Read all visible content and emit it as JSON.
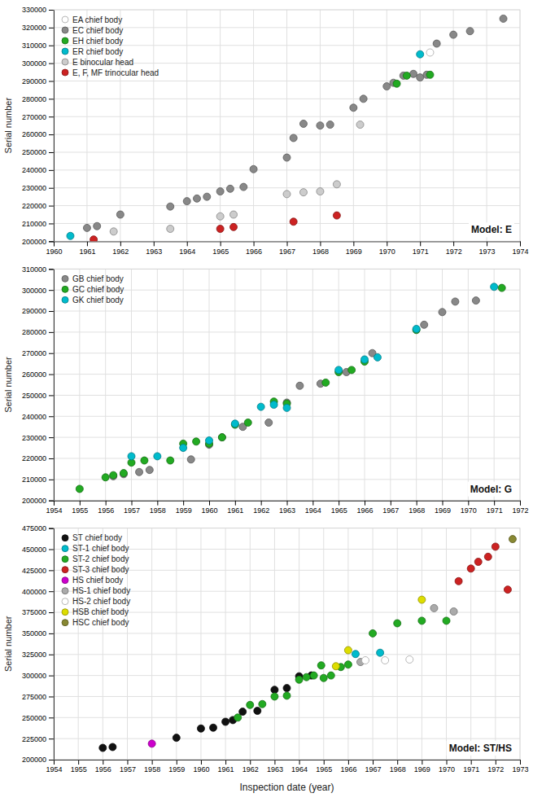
{
  "chart_data": [
    {
      "type": "scatter",
      "title": "Model: E",
      "ylabel": "Serial number",
      "xlim": [
        1960,
        1974
      ],
      "ylim": [
        200000,
        330000
      ],
      "xticks": [
        1960,
        1961,
        1962,
        1963,
        1964,
        1965,
        1966,
        1967,
        1968,
        1969,
        1970,
        1971,
        1972,
        1973,
        1974
      ],
      "yticks": [
        200000,
        210000,
        220000,
        230000,
        240000,
        250000,
        260000,
        270000,
        280000,
        290000,
        300000,
        310000,
        320000,
        330000
      ],
      "grid": true,
      "legend": "upper left",
      "series": [
        {
          "name": "EA chief body",
          "color": "white",
          "x": [
            1971.3
          ],
          "values": [
            306000
          ]
        },
        {
          "name": "EC chief body",
          "color": "#888888",
          "x": [
            1961.0,
            1961.3,
            1962.0,
            1963.5,
            1964.0,
            1964.3,
            1964.6,
            1965.0,
            1965.3,
            1965.7,
            1966.0,
            1967.0,
            1967.2,
            1967.5,
            1968.0,
            1968.3,
            1969.0,
            1969.3,
            1970.0,
            1970.2,
            1970.5,
            1970.8,
            1971.0,
            1971.2,
            1971.5,
            1972.0,
            1972.5,
            1973.5
          ],
          "values": [
            207500,
            208500,
            215000,
            219500,
            222500,
            224000,
            225000,
            228000,
            229500,
            230500,
            240500,
            247000,
            258000,
            266000,
            265000,
            265500,
            275000,
            280000,
            287000,
            289000,
            293000,
            294000,
            292000,
            293500,
            311000,
            316000,
            318000,
            325000
          ]
        },
        {
          "name": "EH chief body",
          "color": "#22aa22",
          "x": [
            1970.3,
            1970.6,
            1971.3
          ],
          "values": [
            288500,
            293000,
            293500
          ]
        },
        {
          "name": "ER chief body",
          "color": "#00bbcc",
          "x": [
            1960.5,
            1971.0
          ],
          "values": [
            203000,
            305000
          ]
        },
        {
          "name": "E binocular head",
          "color": "#cccccc",
          "x": [
            1961.8,
            1963.5,
            1965.0,
            1965.4,
            1967.0,
            1967.5,
            1968.0,
            1968.5,
            1969.2
          ],
          "values": [
            205500,
            207000,
            214000,
            215000,
            226500,
            227500,
            228000,
            232000,
            265500
          ]
        },
        {
          "name": "E, F, MF trinocular head",
          "color": "#cc2222",
          "x": [
            1961.2,
            1965.0,
            1965.4,
            1967.2,
            1968.5
          ],
          "values": [
            201000,
            207000,
            208000,
            211000,
            214500
          ]
        }
      ]
    },
    {
      "type": "scatter",
      "title": "Model: G",
      "ylabel": "Serial number",
      "xlim": [
        1954,
        1972
      ],
      "ylim": [
        200000,
        310000
      ],
      "xticks": [
        1954,
        1955,
        1956,
        1957,
        1958,
        1959,
        1960,
        1961,
        1962,
        1963,
        1964,
        1965,
        1966,
        1967,
        1968,
        1969,
        1970,
        1971,
        1972
      ],
      "yticks": [
        200000,
        210000,
        220000,
        230000,
        240000,
        250000,
        260000,
        270000,
        280000,
        290000,
        300000,
        310000
      ],
      "grid": true,
      "legend": "upper left",
      "series": [
        {
          "name": "GB chief body",
          "color": "#888888",
          "x": [
            1956.3,
            1956.7,
            1957.3,
            1957.7,
            1959.3,
            1960.0,
            1960.5,
            1961.3,
            1962.3,
            1963.0,
            1963.5,
            1964.3,
            1965.3,
            1966.3,
            1968.3,
            1969.0,
            1969.5,
            1970.3
          ],
          "values": [
            211500,
            212500,
            213500,
            214500,
            219500,
            226500,
            230000,
            235000,
            237000,
            246500,
            254500,
            255500,
            261000,
            270000,
            283500,
            289500,
            294500,
            295000
          ]
        },
        {
          "name": "GC chief body",
          "color": "#22aa22",
          "x": [
            1955.0,
            1956.0,
            1956.3,
            1956.7,
            1957.0,
            1957.5,
            1958.5,
            1959.0,
            1959.5,
            1960.0,
            1960.5,
            1961.0,
            1961.5,
            1962.5,
            1963.0,
            1964.5,
            1965.0,
            1965.5,
            1966.0,
            1968.0,
            1971.3
          ],
          "values": [
            205500,
            211000,
            212000,
            213000,
            218000,
            219000,
            219000,
            227000,
            228000,
            227000,
            230000,
            236000,
            237000,
            247000,
            246000,
            256000,
            261000,
            262000,
            266000,
            281000,
            301000
          ]
        },
        {
          "name": "GK chief body",
          "color": "#00bbcc",
          "x": [
            1957.0,
            1958.0,
            1959.0,
            1960.0,
            1961.0,
            1962.0,
            1962.5,
            1963.0,
            1965.0,
            1966.0,
            1966.5,
            1968.0,
            1971.0
          ],
          "values": [
            221000,
            221000,
            225000,
            228500,
            236500,
            244500,
            245500,
            244000,
            262000,
            267000,
            268000,
            281500,
            301500
          ]
        }
      ]
    },
    {
      "type": "scatter",
      "title": "Model: ST/HS",
      "ylabel": "Serial number",
      "xlabel": "Inspection date (year)",
      "xlim": [
        1954,
        1973
      ],
      "ylim": [
        200000,
        475000
      ],
      "xticks": [
        1954,
        1955,
        1956,
        1957,
        1958,
        1959,
        1960,
        1961,
        1962,
        1963,
        1964,
        1965,
        1966,
        1967,
        1968,
        1969,
        1970,
        1971,
        1972,
        1973
      ],
      "yticks": [
        200000,
        225000,
        250000,
        275000,
        300000,
        325000,
        350000,
        375000,
        400000,
        425000,
        450000,
        475000
      ],
      "grid": true,
      "legend": "upper left",
      "series": [
        {
          "name": "ST chief body",
          "color": "#111111",
          "x": [
            1956.0,
            1956.4,
            1959.0,
            1960.0,
            1960.5,
            1961.0,
            1961.3,
            1961.7,
            1962.3,
            1963.0,
            1963.5,
            1964.0,
            1964.5
          ],
          "values": [
            214000,
            215000,
            226000,
            237000,
            238000,
            245000,
            247000,
            257000,
            258000,
            283000,
            285000,
            299000,
            300000
          ]
        },
        {
          "name": "ST-1 chief body",
          "color": "#00bbcc",
          "x": [
            1966.3,
            1967.3
          ],
          "values": [
            325500,
            327000
          ]
        },
        {
          "name": "ST-2 chief body",
          "color": "#22aa22",
          "x": [
            1961.5,
            1962.0,
            1962.5,
            1963.0,
            1963.5,
            1964.0,
            1964.3,
            1964.6,
            1964.9,
            1965.0,
            1965.3,
            1965.7,
            1966.0,
            1967.0,
            1968.0,
            1969.0,
            1970.0
          ],
          "values": [
            250000,
            265000,
            266000,
            275000,
            276000,
            295000,
            298000,
            300000,
            312000,
            297000,
            300000,
            310000,
            313000,
            350000,
            362000,
            365000,
            365000
          ]
        },
        {
          "name": "ST-3 chief body",
          "color": "#cc2222",
          "x": [
            1970.5,
            1971.0,
            1971.3,
            1971.7,
            1972.0,
            1972.5
          ],
          "values": [
            412000,
            427000,
            435000,
            441000,
            453000,
            402000
          ]
        },
        {
          "name": "HS chief body",
          "color": "#cc00cc",
          "x": [
            1958.0
          ],
          "values": [
            219000
          ]
        },
        {
          "name": "HS-1 chief body",
          "color": "#aaaaaa",
          "x": [
            1966.5,
            1969.5,
            1970.3
          ],
          "values": [
            316000,
            380000,
            376000
          ]
        },
        {
          "name": "HS-2 chief body",
          "color": "white",
          "x": [
            1966.7,
            1967.5,
            1968.5
          ],
          "values": [
            318000,
            318000,
            319000
          ]
        },
        {
          "name": "HSB chief body",
          "color": "#dddd00",
          "x": [
            1965.5,
            1966.0,
            1969.0
          ],
          "values": [
            311000,
            330000,
            390000
          ]
        },
        {
          "name": "HSC chief body",
          "color": "#888833",
          "x": [
            1972.7
          ],
          "values": [
            462000
          ]
        }
      ]
    }
  ]
}
